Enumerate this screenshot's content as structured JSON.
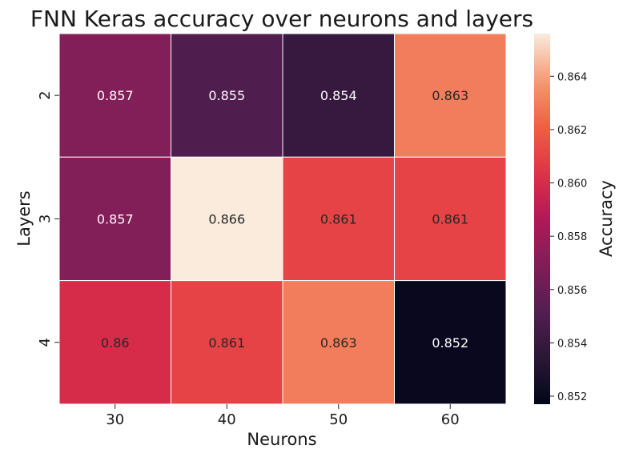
{
  "chart_data": {
    "type": "heatmap",
    "title": "FNN Keras accuracy over neurons and layers",
    "xlabel": "Neurons",
    "ylabel": "Layers",
    "x_categories": [
      "30",
      "40",
      "50",
      "60"
    ],
    "y_categories": [
      "2",
      "3",
      "4"
    ],
    "values": [
      [
        0.857,
        0.855,
        0.854,
        0.863
      ],
      [
        0.857,
        0.866,
        0.861,
        0.861
      ],
      [
        0.86,
        0.861,
        0.863,
        0.852
      ]
    ],
    "cell_labels": [
      [
        "0.857",
        "0.855",
        "0.854",
        "0.863"
      ],
      [
        "0.857",
        "0.866",
        "0.861",
        "0.861"
      ],
      [
        "0.86",
        "0.861",
        "0.863",
        "0.852"
      ]
    ],
    "colorbar": {
      "label": "Accuracy",
      "vmin": 0.8517,
      "vmax": 0.8656,
      "ticks": [
        "0.852",
        "0.854",
        "0.856",
        "0.858",
        "0.860",
        "0.862",
        "0.864"
      ]
    },
    "colormap": "rocket",
    "grid": true
  }
}
